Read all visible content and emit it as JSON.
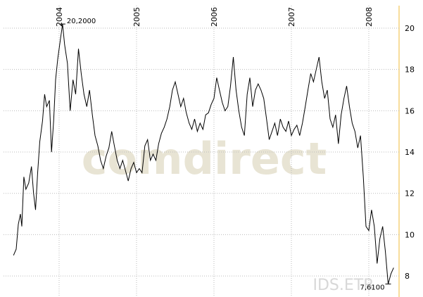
{
  "chart_data": {
    "type": "line",
    "watermark": "comdirect",
    "source": "IDS.ETR",
    "color": "#000000",
    "grid": true,
    "xlim": [
      2003.282,
      2008.391
    ],
    "xticks": [
      2004,
      2005,
      2006,
      2007,
      2008
    ],
    "ylim": [
      7.05,
      21.09
    ],
    "yticks": [
      8,
      10,
      12,
      14,
      16,
      18,
      20
    ],
    "annotations": [
      {
        "label": "20,2000",
        "value": 20.2,
        "x": 2004.045
      },
      {
        "label": "7,6100",
        "value": 7.61,
        "x": 2008.25
      }
    ],
    "x": [
      2003.411,
      2003.446,
      2003.473,
      2003.5,
      2003.518,
      2003.545,
      2003.571,
      2003.607,
      2003.643,
      2003.67,
      2003.696,
      2003.723,
      2003.75,
      2003.786,
      2003.813,
      2003.839,
      2003.875,
      2003.902,
      2003.929,
      2003.955,
      2003.982,
      2004.018,
      2004.045,
      2004.071,
      2004.107,
      2004.143,
      2004.179,
      2004.214,
      2004.25,
      2004.286,
      2004.321,
      2004.357,
      2004.393,
      2004.429,
      2004.464,
      2004.5,
      2004.536,
      2004.571,
      2004.607,
      2004.643,
      2004.679,
      2004.714,
      2004.75,
      2004.786,
      2004.821,
      2004.857,
      2004.893,
      2004.929,
      2004.964,
      2005.0,
      2005.036,
      2005.071,
      2005.107,
      2005.143,
      2005.179,
      2005.214,
      2005.25,
      2005.286,
      2005.321,
      2005.357,
      2005.393,
      2005.429,
      2005.464,
      2005.5,
      2005.536,
      2005.571,
      2005.607,
      2005.643,
      2005.679,
      2005.714,
      2005.75,
      2005.786,
      2005.821,
      2005.857,
      2005.893,
      2005.929,
      2005.964,
      2006.0,
      2006.036,
      2006.071,
      2006.107,
      2006.143,
      2006.179,
      2006.214,
      2006.25,
      2006.286,
      2006.321,
      2006.357,
      2006.393,
      2006.429,
      2006.464,
      2006.5,
      2006.536,
      2006.571,
      2006.607,
      2006.643,
      2006.679,
      2006.714,
      2006.75,
      2006.786,
      2006.821,
      2006.857,
      2006.893,
      2006.929,
      2006.964,
      2007.0,
      2007.036,
      2007.071,
      2007.107,
      2007.143,
      2007.179,
      2007.214,
      2007.25,
      2007.286,
      2007.321,
      2007.357,
      2007.393,
      2007.429,
      2007.464,
      2007.5,
      2007.536,
      2007.571,
      2007.607,
      2007.643,
      2007.679,
      2007.714,
      2007.75,
      2007.786,
      2007.821,
      2007.857,
      2007.893,
      2007.929,
      2007.964,
      2008.0,
      2008.036,
      2008.071,
      2008.107,
      2008.143,
      2008.179,
      2008.214,
      2008.25,
      2008.286,
      2008.321
    ],
    "values": [
      9.0,
      9.3,
      10.5,
      11.0,
      10.4,
      12.8,
      12.2,
      12.5,
      13.3,
      12.0,
      11.2,
      13.0,
      14.5,
      15.5,
      16.8,
      16.2,
      16.5,
      14.0,
      15.5,
      17.5,
      18.5,
      19.5,
      20.2,
      19.2,
      18.3,
      16.0,
      17.5,
      16.8,
      19.0,
      17.8,
      16.8,
      16.2,
      17.0,
      15.8,
      14.8,
      14.3,
      13.6,
      13.2,
      13.8,
      14.2,
      15.0,
      14.3,
      13.6,
      13.2,
      13.6,
      13.1,
      12.6,
      13.2,
      13.5,
      13.0,
      13.2,
      13.0,
      14.3,
      14.6,
      13.6,
      13.9,
      13.6,
      14.4,
      14.9,
      15.2,
      15.6,
      16.2,
      17.0,
      17.4,
      16.8,
      16.2,
      16.6,
      15.9,
      15.4,
      15.1,
      15.6,
      15.0,
      15.4,
      15.1,
      15.8,
      15.9,
      16.3,
      16.6,
      17.6,
      17.0,
      16.4,
      16.0,
      16.2,
      17.2,
      18.6,
      17.0,
      16.0,
      15.2,
      14.8,
      16.8,
      17.6,
      16.2,
      17.0,
      17.3,
      17.0,
      16.6,
      15.6,
      14.6,
      15.0,
      15.4,
      14.8,
      15.6,
      15.2,
      15.0,
      15.5,
      14.8,
      15.1,
      15.3,
      14.8,
      15.4,
      16.2,
      17.0,
      17.8,
      17.4,
      18.0,
      18.6,
      17.4,
      16.6,
      17.0,
      15.6,
      15.2,
      15.8,
      14.4,
      15.8,
      16.6,
      17.2,
      16.2,
      15.4,
      15.0,
      14.2,
      14.8,
      12.8,
      10.4,
      10.2,
      11.2,
      10.4,
      8.6,
      9.8,
      10.4,
      9.2,
      7.61,
      8.1,
      8.4
    ]
  }
}
